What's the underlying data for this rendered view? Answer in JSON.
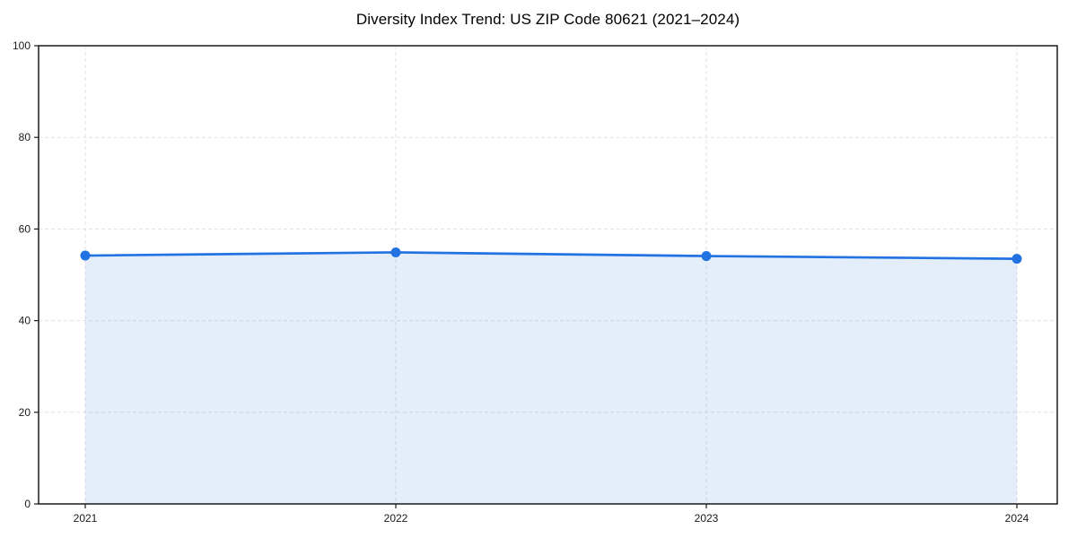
{
  "chart": {
    "title": "Diversity Index Trend: US ZIP Code 80621 (2021–2024)"
  },
  "chart_data": {
    "type": "area",
    "categories": [
      "2021",
      "2022",
      "2023",
      "2024"
    ],
    "series": [
      {
        "name": "Diversity Index",
        "values": [
          54.2,
          54.9,
          54.1,
          53.5
        ]
      }
    ],
    "title": "Diversity Index Trend: US ZIP Code 80621 (2021–2024)",
    "xlabel": "",
    "ylabel": "",
    "ylim": [
      0,
      100
    ],
    "yticks": [
      0,
      20,
      40,
      60,
      80,
      100
    ],
    "grid": true,
    "grid_style": "dashed",
    "legend": "none",
    "line_color": "#2272e2",
    "fill_opacity": 0.12,
    "marker": "circle",
    "axis_color": "#1a1a1a"
  }
}
